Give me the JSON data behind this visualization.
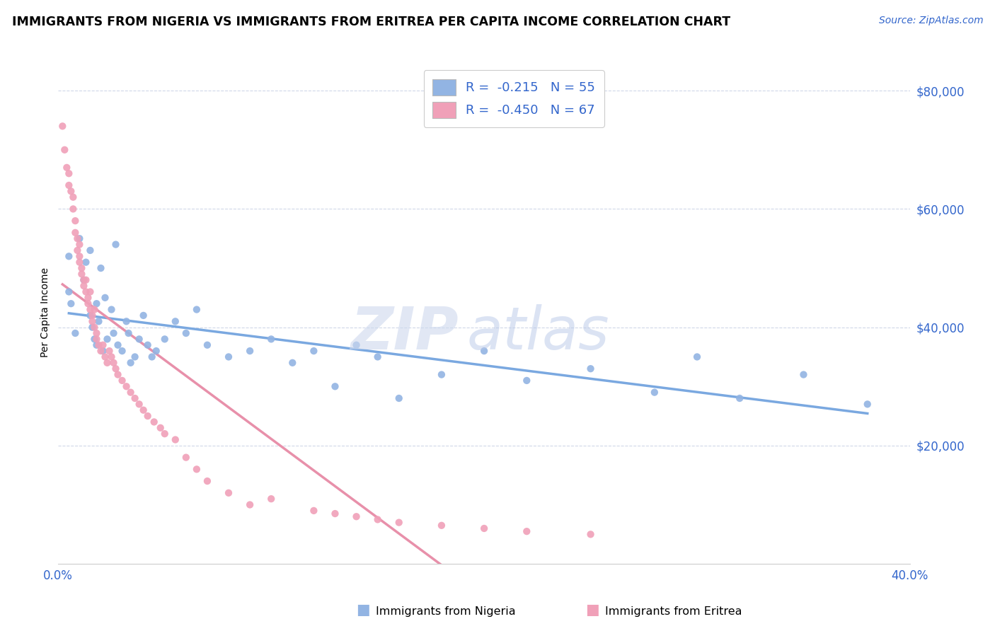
{
  "title": "IMMIGRANTS FROM NIGERIA VS IMMIGRANTS FROM ERITREA PER CAPITA INCOME CORRELATION CHART",
  "source": "Source: ZipAtlas.com",
  "ylabel": "Per Capita Income",
  "legend_items": [
    {
      "label": "R =  -0.215   N = 55",
      "color": "#aec6f0"
    },
    {
      "label": "R =  -0.450   N = 67",
      "color": "#f4b8c8"
    }
  ],
  "footer_left": "Immigrants from Nigeria",
  "footer_right": "Immigrants from Eritrea",
  "yticks": [
    20000,
    40000,
    60000,
    80000
  ],
  "ytick_labels": [
    "$20,000",
    "$40,000",
    "$60,000",
    "$80,000"
  ],
  "nigeria_color": "#92b4e3",
  "eritrea_color": "#f0a0b8",
  "nigeria_line_color": "#7aa8e0",
  "eritrea_line_color": "#e890aa",
  "xlim": [
    0.0,
    0.4
  ],
  "ylim": [
    0,
    85000
  ],
  "background_color": "#ffffff",
  "grid_color": "#d0d8e8",
  "nigeria_points_x": [
    0.005,
    0.005,
    0.006,
    0.008,
    0.01,
    0.012,
    0.013,
    0.015,
    0.015,
    0.016,
    0.017,
    0.018,
    0.018,
    0.019,
    0.02,
    0.021,
    0.022,
    0.023,
    0.025,
    0.026,
    0.027,
    0.028,
    0.03,
    0.032,
    0.033,
    0.034,
    0.036,
    0.038,
    0.04,
    0.042,
    0.044,
    0.046,
    0.05,
    0.055,
    0.06,
    0.065,
    0.07,
    0.08,
    0.09,
    0.1,
    0.11,
    0.12,
    0.13,
    0.14,
    0.15,
    0.16,
    0.18,
    0.2,
    0.22,
    0.25,
    0.28,
    0.3,
    0.32,
    0.35,
    0.38
  ],
  "nigeria_points_y": [
    46000,
    52000,
    44000,
    39000,
    55000,
    48000,
    51000,
    42000,
    53000,
    40000,
    38000,
    44000,
    37000,
    41000,
    50000,
    36000,
    45000,
    38000,
    43000,
    39000,
    54000,
    37000,
    36000,
    41000,
    39000,
    34000,
    35000,
    38000,
    42000,
    37000,
    35000,
    36000,
    38000,
    41000,
    39000,
    43000,
    37000,
    35000,
    36000,
    38000,
    34000,
    36000,
    30000,
    37000,
    35000,
    28000,
    32000,
    36000,
    31000,
    33000,
    29000,
    35000,
    28000,
    32000,
    27000
  ],
  "eritrea_points_x": [
    0.002,
    0.003,
    0.004,
    0.005,
    0.005,
    0.006,
    0.007,
    0.007,
    0.008,
    0.008,
    0.009,
    0.009,
    0.01,
    0.01,
    0.01,
    0.011,
    0.011,
    0.012,
    0.012,
    0.013,
    0.013,
    0.014,
    0.014,
    0.015,
    0.015,
    0.016,
    0.016,
    0.017,
    0.017,
    0.018,
    0.018,
    0.019,
    0.02,
    0.021,
    0.022,
    0.023,
    0.024,
    0.025,
    0.026,
    0.027,
    0.028,
    0.03,
    0.032,
    0.034,
    0.036,
    0.038,
    0.04,
    0.042,
    0.045,
    0.048,
    0.05,
    0.055,
    0.06,
    0.065,
    0.07,
    0.08,
    0.09,
    0.1,
    0.12,
    0.13,
    0.14,
    0.15,
    0.16,
    0.18,
    0.2,
    0.22,
    0.25
  ],
  "eritrea_points_y": [
    74000,
    70000,
    67000,
    64000,
    66000,
    63000,
    62000,
    60000,
    58000,
    56000,
    55000,
    53000,
    52000,
    51000,
    54000,
    50000,
    49000,
    48000,
    47000,
    46000,
    48000,
    45000,
    44000,
    43000,
    46000,
    42000,
    41000,
    40000,
    43000,
    39000,
    38000,
    37000,
    36000,
    37000,
    35000,
    34000,
    36000,
    35000,
    34000,
    33000,
    32000,
    31000,
    30000,
    29000,
    28000,
    27000,
    26000,
    25000,
    24000,
    23000,
    22000,
    21000,
    18000,
    16000,
    14000,
    12000,
    10000,
    11000,
    9000,
    8500,
    8000,
    7500,
    7000,
    6500,
    6000,
    5500,
    5000
  ]
}
